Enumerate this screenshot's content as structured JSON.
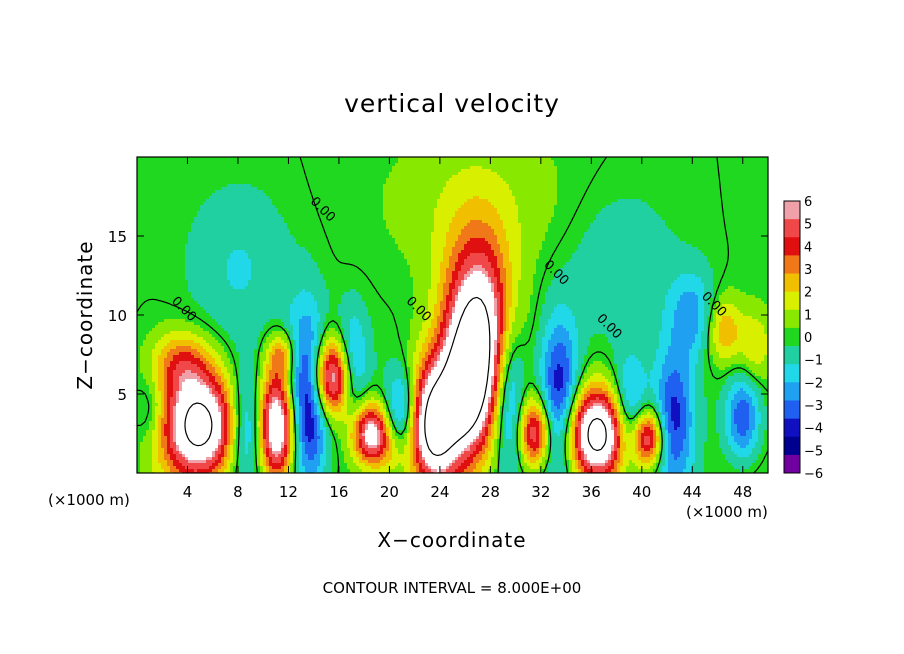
{
  "chart_data": {
    "type": "heatmap",
    "title": "vertical velocity",
    "xlabel": "X−coordinate",
    "ylabel": "Z−coordinate",
    "x_unit_left": "(×1000 m)",
    "x_unit_right": "(×1000 m)",
    "xlim": [
      0,
      50
    ],
    "ylim": [
      0,
      20
    ],
    "x_ticks": [
      {
        "value": 4,
        "label": "4"
      },
      {
        "value": 8,
        "label": "8"
      },
      {
        "value": 12,
        "label": "12"
      },
      {
        "value": 16,
        "label": "16"
      },
      {
        "value": 20,
        "label": "20"
      },
      {
        "value": 24,
        "label": "24"
      },
      {
        "value": 28,
        "label": "28"
      },
      {
        "value": 32,
        "label": "32"
      },
      {
        "value": 36,
        "label": "36"
      },
      {
        "value": 40,
        "label": "40"
      },
      {
        "value": 44,
        "label": "44"
      },
      {
        "value": 48,
        "label": "48"
      }
    ],
    "y_ticks": [
      {
        "value": 5,
        "label": "5"
      },
      {
        "value": 10,
        "label": "10"
      },
      {
        "value": 15,
        "label": "15"
      }
    ],
    "contour_labels": [
      {
        "x": 14.5,
        "y": 16.5,
        "text": "0.00"
      },
      {
        "x": 3.5,
        "y": 10.2,
        "text": "0.00"
      },
      {
        "x": 22.1,
        "y": 10.2,
        "text": "0.00"
      },
      {
        "x": 33.0,
        "y": 12.5,
        "text": "0.00"
      },
      {
        "x": 37.2,
        "y": 9.1,
        "text": "0.00"
      },
      {
        "x": 45.5,
        "y": 10.5,
        "text": "0.00"
      }
    ],
    "footer": "CONTOUR INTERVAL = 8.000E+00",
    "colorbar": {
      "labels": [
        "6",
        "5",
        "4",
        "3",
        "2",
        "1",
        "0",
        "−1",
        "−2",
        "−3",
        "−4",
        "−5",
        "−6"
      ],
      "values": [
        6,
        5,
        4,
        3,
        2,
        1,
        0,
        -1,
        -2,
        -3,
        -4,
        -5,
        -6
      ],
      "colors": [
        "#f0a0a8",
        "#f04848",
        "#e01010",
        "#f07818",
        "#f0c000",
        "#d8f000",
        "#88e800",
        "#20d820",
        "#20d0a0",
        "#20d8e8",
        "#20a0f0",
        "#2060f0",
        "#1010c0",
        "#000090",
        "#7000a0"
      ]
    },
    "updrafts": [
      {
        "x": 5,
        "z": 3,
        "sx": 2.1,
        "sz": 2.4,
        "a": 9
      },
      {
        "x": 3.5,
        "z": 7,
        "sx": 1.6,
        "sz": 1.4,
        "a": 3
      },
      {
        "x": 11,
        "z": 3,
        "sx": 1.2,
        "sz": 2.5,
        "a": 9
      },
      {
        "x": 11.5,
        "z": 7.5,
        "sx": 0.8,
        "sz": 1.0,
        "a": 3
      },
      {
        "x": 15.5,
        "z": 6,
        "sx": 1.2,
        "sz": 1.8,
        "a": 8
      },
      {
        "x": 18.5,
        "z": 2.5,
        "sx": 1.1,
        "sz": 1.4,
        "a": 7
      },
      {
        "x": 23.5,
        "z": 3,
        "sx": 1.4,
        "sz": 2.8,
        "a": 9
      },
      {
        "x": 27,
        "z": 8.5,
        "sx": 1.9,
        "sz": 4.2,
        "a": 9
      },
      {
        "x": 26,
        "z": 5,
        "sx": 1.2,
        "sz": 2.6,
        "a": 5
      },
      {
        "x": 31.5,
        "z": 2.5,
        "sx": 0.9,
        "sz": 1.6,
        "a": 6
      },
      {
        "x": 36.5,
        "z": 2.5,
        "sx": 1.9,
        "sz": 2.0,
        "a": 9
      },
      {
        "x": 40.5,
        "z": 2.2,
        "sx": 0.9,
        "sz": 1.3,
        "a": 6
      },
      {
        "x": 46.5,
        "z": 9,
        "sx": 1.0,
        "sz": 1.5,
        "a": 3
      },
      {
        "x": 49,
        "z": 8,
        "sx": 0.9,
        "sz": 1.6,
        "a": 2
      },
      {
        "x": 27,
        "z": 17,
        "sx": 5.5,
        "sz": 3.5,
        "a": 1.2
      },
      {
        "x": 20,
        "z": 1,
        "sx": 1.0,
        "sz": 1.2,
        "a": 1.5
      }
    ],
    "downdrafts": [
      {
        "x": 9,
        "z": 3,
        "sx": 1.1,
        "sz": 2.5,
        "a": -4.5
      },
      {
        "x": 13.5,
        "z": 4.5,
        "sx": 1.2,
        "sz": 3.8,
        "a": -6.5
      },
      {
        "x": 17,
        "z": 6.5,
        "sx": 0.9,
        "sz": 2.5,
        "a": -4
      },
      {
        "x": 21,
        "z": 4,
        "sx": 0.9,
        "sz": 1.8,
        "a": -3.5
      },
      {
        "x": 29.5,
        "z": 5,
        "sx": 0.9,
        "sz": 3.5,
        "a": -4
      },
      {
        "x": 33.5,
        "z": 4.5,
        "sx": 1.1,
        "sz": 3.5,
        "a": -5
      },
      {
        "x": 39,
        "z": 3.5,
        "sx": 1.0,
        "sz": 2.4,
        "a": -4.5
      },
      {
        "x": 42.5,
        "z": 3.5,
        "sx": 1.1,
        "sz": 3.0,
        "a": -4
      },
      {
        "x": 44,
        "z": 10,
        "sx": 1.3,
        "sz": 2.0,
        "a": -2.5
      },
      {
        "x": 48,
        "z": 3.5,
        "sx": 1.0,
        "sz": 2.0,
        "a": -4
      },
      {
        "x": 8,
        "z": 13,
        "sx": 3.0,
        "sz": 3.5,
        "a": -1.3
      },
      {
        "x": 38,
        "z": 13,
        "sx": 3.0,
        "sz": 3.5,
        "a": -1.3
      },
      {
        "x": 1,
        "z": 4,
        "sx": 0.8,
        "sz": 1.4,
        "a": -1.5
      }
    ]
  }
}
